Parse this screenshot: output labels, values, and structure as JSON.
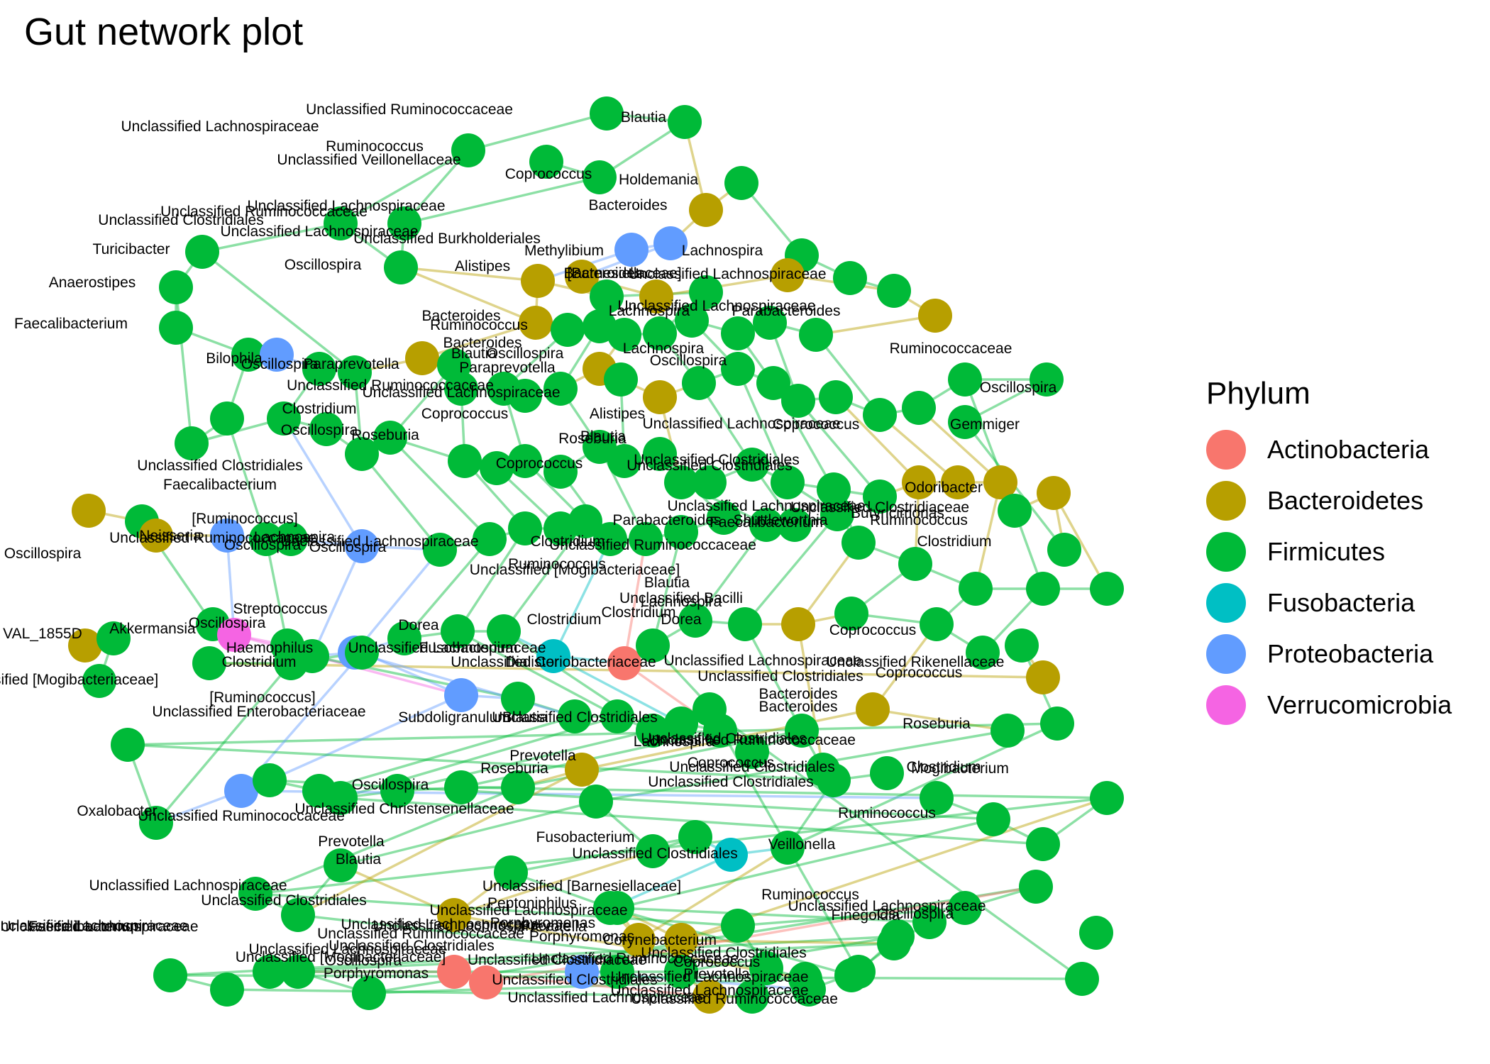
{
  "title": "Gut network plot",
  "legend": {
    "title": "Phylum",
    "items": [
      {
        "label": "Actinobacteria",
        "color": "#F8766D"
      },
      {
        "label": "Bacteroidetes",
        "color": "#B79F00"
      },
      {
        "label": "Firmicutes",
        "color": "#00BA38"
      },
      {
        "label": "Fusobacteria",
        "color": "#00BFC4"
      },
      {
        "label": "Proteobacteria",
        "color": "#619CFF"
      },
      {
        "label": "Verrucomicrobia",
        "color": "#F564E3"
      }
    ]
  },
  "colors": {
    "Actinobacteria": "#F8766D",
    "Bacteroidetes": "#B79F00",
    "Firmicutes": "#00BA38",
    "Fusobacteria": "#00BFC4",
    "Proteobacteria": "#619CFF",
    "Verrucomicrobia": "#F564E3"
  },
  "labels": [
    "Unclassified Ruminococcaceae",
    "Unclassified Lachnospiraceae",
    "Ruminococcus",
    "Unclassified Veillonellaceae",
    "Blautia",
    "Coprococcus",
    "Holdemania",
    "Bacteroides",
    "Unclassified Lachnospiraceae",
    "Unclassified Clostridiales",
    "Unclassified Ruminococcaceae",
    "Unclassified Lachnospiraceae",
    "Unclassified Burkholderiales",
    "Turicibacter",
    "Methylibium",
    "Lachnospira",
    "Oscillospira",
    "Alistipes",
    "Bacteroides",
    "[Barnesiellaceae]",
    "Unclassified Lachnospiraceae",
    "Anaerostipes",
    "Unclassified Lachnospiraceae",
    "Parabacteroides",
    "Bacteroides",
    "Lachnospira",
    "Faecalibacterium",
    "Ruminococcus",
    "Bacteroides",
    "Bilophila",
    "Oscillospira",
    "Paraprevotella",
    "Blautia",
    "Oscillospira",
    "Lachnospira",
    "Oscillospira",
    "Paraprevotella",
    "Unclassified Lachnospiraceae",
    "Unclassified Ruminococcaceae",
    "Ruminococcaceae",
    "Clostridium",
    "Coprococcus",
    "Alistipes",
    "Oscillospira",
    "Oscillospira",
    "Gemmiger",
    "Roseburia",
    "Blautia",
    "Coprococcus",
    "Roseburia",
    "Unclassified Clostridiales",
    "Faecalibacterium",
    "Unclassified Clostridiales",
    "Unclassified Lachnospiraceae",
    "Odoribacter",
    "Unclassified Lachnospiraceae",
    "Clostridium",
    "Parabacteroides",
    "Faecalibacterium",
    "Shuttleworthia",
    "Butyricimonas",
    "Ruminococcus",
    "Neisseria",
    "[Ruminococcus]",
    "Oscillospira",
    "Lachnospira",
    "Oscillospira",
    "Unclassified Lachnospiraceae",
    "Clostridium",
    "Unclassified Ruminococcaceae",
    "Unclassified [Mogibacteriaceae]",
    "Ruminococcus",
    "Blautia",
    "Unclassified Bacilli",
    "Streptococcus",
    "Oscillospira",
    "Akkermansia",
    "Clostridium",
    "Haemophilus",
    "Dorea",
    "Clostridium",
    "Lachnospira",
    "Dorea",
    "Unclassified Lachnospiraceae",
    "Coprococcus",
    "Fusobacterium",
    "Clostridium",
    "Dialister",
    "Unclassified Coriobacteriaceae",
    "Bacteroides",
    "Unclassified Rikenellaceae",
    "Coprococcus",
    "Unclassified Lachnospiraceae",
    "Unclassified Clostridiales",
    "[Ruminococcus]",
    "Unclassified Enterobacteriaceae",
    "Subdoligranulum",
    "Blautia",
    "Unclassified Clostridiales",
    "Bacteroides",
    "Roseburia",
    "Unclassified Clostridiales",
    "Unclassified Ruminococcaceae",
    "Clostridium",
    "Lachnospira",
    "Unclassified Clostridiales",
    "Prevotella",
    "Roseburia",
    "Coprococcus",
    "Mogibacterium",
    "Oscillospira",
    "Unclassified Christensenellaceae",
    "Oxalobacter",
    "Unclassified Ruminococcaceae",
    "Unclassified Clostridiales",
    "Prevotella",
    "Blautia",
    "Fusobacterium",
    "Unclassified Clostridiales",
    "Ruminococcus",
    "Veillonella",
    "Unclassified Lachnospiraceae",
    "Unclassified Clostridiales",
    "Unclassified [Barnesiellaceae]",
    "Ruminococcus",
    "Oscillospira",
    "Unclassified Lachnospiraceae",
    "Peptoniphilus",
    "Finegoldia",
    "Unclassified Ruminococcaceae",
    "Porphyromonas",
    "Corynebacterium",
    "Unclassified [Mogibacteriaceae]",
    "Unclassified Ruminococcaceae",
    "Unclassified Clostridiaceae",
    "Coprococcus",
    "Porphyromonas",
    "Oscillospira",
    "Unclassified Clostridiales",
    "Unclassified Lachnospiraceae",
    "Unclassified Lachnospiraceae",
    "Unclassified Ruminococcaceae",
    "Unclassified Lachnospiraceae",
    "Faecalibacterium",
    "Unclassified Lachnospiraceae",
    "Unclassified Lachnospiraceae",
    "Unclassified Clostridiales",
    "Unclassified Lachnospiraceae",
    "Porphyromonas",
    "Prevotella",
    "Unclassified Lachnospiraceae",
    "Oscillospira",
    "VAL_1855D",
    "Unclassified [Mogibacteriaceae]",
    "Unclassified Ruminococcaceae",
    "Unclassified Clostridiales",
    "Coprococcus",
    "Unclassified Clostridiaceae",
    "Prevotella",
    "Unclassified Clostridiales",
    "Unclassified Lachnospiraceae",
    "Unclassified Lachnospiraceae"
  ]
}
